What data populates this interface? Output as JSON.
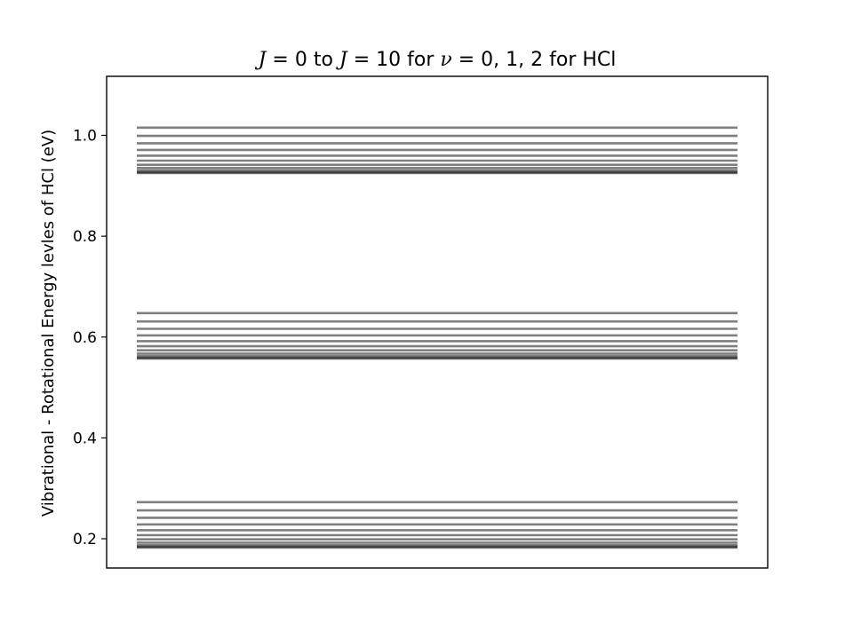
{
  "chart_data": {
    "type": "line",
    "title_parts": {
      "j1": "J",
      "eq0": " = 0 to ",
      "j2": "J",
      "eq10": " = 10 for ",
      "nu": "ν",
      "rest": " = 0, 1, 2 for HCl"
    },
    "xlabel": "",
    "ylabel": "Vibrational - Rotational Energy levles of HCl (eV)",
    "ylim": [
      0.142,
      1.117
    ],
    "yticks": [
      0.2,
      0.4,
      0.6,
      0.8,
      1.0
    ],
    "ytick_labels": [
      "0.2",
      "0.4",
      "0.6",
      "0.8",
      "1.0"
    ],
    "grid": false,
    "line_color": "#000000",
    "line_alpha": 0.5,
    "series": [
      {
        "v": 0,
        "levels": [
          0.1826,
          0.1842,
          0.1875,
          0.1924,
          0.1989,
          0.2071,
          0.2169,
          0.2284,
          0.2415,
          0.2562,
          0.2726
        ]
      },
      {
        "v": 1,
        "levels": [
          0.5574,
          0.559,
          0.5623,
          0.5672,
          0.5737,
          0.5819,
          0.5917,
          0.6032,
          0.6163,
          0.631,
          0.6474
        ]
      },
      {
        "v": 2,
        "levels": [
          0.9253,
          0.9269,
          0.9302,
          0.9351,
          0.9416,
          0.9498,
          0.9596,
          0.9711,
          0.9842,
          0.9989,
          1.0153
        ]
      }
    ]
  }
}
